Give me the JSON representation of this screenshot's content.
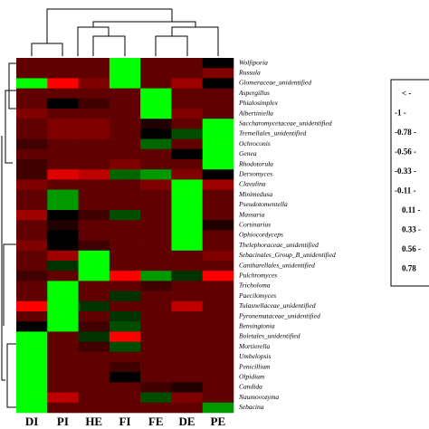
{
  "chart_data": {
    "type": "heatmap",
    "columns": [
      "DI",
      "PI",
      "HE",
      "FI",
      "FE",
      "DE",
      "PE"
    ],
    "rows": [
      "Wolfiporia",
      "Russula",
      "Glomeraceae_unidentified",
      "Aspergillus",
      "Phialosimplex",
      "Albertiniella",
      "Saccharomycetaceae_unidentified",
      "Tremellales_unidentified",
      "Ochroconis",
      "Genea",
      "Rhodotorula",
      "Derxomyces",
      "Clavulina",
      "Minimedusa",
      "Pseudotomentella",
      "Massaria",
      "Cortinarius",
      "Ophiocordyceps",
      "Thelephoraceae_unidentified",
      "Sebacinales_Group_B_unidentified",
      "Cantharellales_unidentified",
      "Pulchromyces",
      "Tricholoma",
      "Paecilomyces",
      "Tulasnellaceae_unidentified",
      "Pyronemataceae_unidentified",
      "Bensingtonia",
      "Boletales_unidentified",
      "Mortierella",
      "Umbelopsis",
      "Penicillium",
      "Olpidium",
      "Candida",
      "Naumovozyma",
      "Sebacina"
    ],
    "values": [
      [
        0.3,
        0.3,
        0.3,
        -1,
        0.3,
        0.3,
        0
      ],
      [
        0.3,
        0.3,
        0.3,
        -1,
        0.3,
        0.3,
        0.4
      ],
      [
        -1,
        0.8,
        0.4,
        -1,
        0.3,
        0.5,
        0
      ],
      [
        0.3,
        0.3,
        0.3,
        0.3,
        -1,
        0.3,
        0.3
      ],
      [
        0.3,
        0,
        0.2,
        0.3,
        -1,
        0.3,
        0.3
      ],
      [
        0.4,
        0.3,
        0.3,
        0.3,
        -1,
        0.4,
        0.3
      ],
      [
        0.3,
        0.4,
        0.4,
        0.3,
        0.1,
        0.3,
        -1
      ],
      [
        0.3,
        0.4,
        0.4,
        0.3,
        0,
        -0.3,
        -1
      ],
      [
        0.2,
        0.3,
        0.3,
        0.3,
        -0.4,
        0.3,
        -1
      ],
      [
        0.3,
        0.3,
        0.3,
        0.3,
        0.3,
        0,
        -1
      ],
      [
        0.2,
        0.3,
        0.3,
        0.4,
        0.3,
        0.3,
        -1
      ],
      [
        0.2,
        0.7,
        0.6,
        -0.4,
        -0.6,
        0.4,
        0
      ],
      [
        0.4,
        0.3,
        0.3,
        0.3,
        0.4,
        -1,
        0.5
      ],
      [
        0.3,
        -0.6,
        0.3,
        0.3,
        0.3,
        -1,
        0.3
      ],
      [
        0.3,
        -0.6,
        0.3,
        0.3,
        0.3,
        -1,
        0.3
      ],
      [
        0.5,
        0,
        0.2,
        -0.3,
        0.3,
        -1,
        0.3
      ],
      [
        0.3,
        0.1,
        0.3,
        0.3,
        0.3,
        -1,
        0.1
      ],
      [
        0.3,
        0,
        0.3,
        0.3,
        0.3,
        -1,
        0.3
      ],
      [
        0.4,
        0,
        0.2,
        0.3,
        0.3,
        -1,
        0.3
      ],
      [
        0.3,
        0.5,
        -1,
        0.3,
        0.3,
        0.3,
        0.4
      ],
      [
        0.3,
        -0.2,
        -1,
        0.3,
        0.3,
        0.3,
        0.3
      ],
      [
        0.2,
        0.3,
        -1,
        0.8,
        -0.6,
        -0.2,
        0.8
      ],
      [
        0.3,
        -1,
        0.3,
        0.3,
        0.2,
        0.3,
        0.3
      ],
      [
        0.3,
        -1,
        0.3,
        -0.2,
        0.3,
        0.3,
        0.3
      ],
      [
        0.8,
        -1,
        -0.2,
        0.3,
        0.3,
        0.6,
        0.3
      ],
      [
        0.3,
        -1,
        0.3,
        -0.2,
        0.3,
        0.3,
        0.3
      ],
      [
        0,
        -1,
        0.2,
        -0.3,
        0.3,
        0.3,
        0.3
      ],
      [
        -1,
        0.3,
        -0.2,
        0.8,
        0.3,
        0.3,
        0.3
      ],
      [
        -1,
        0.3,
        0.2,
        -0.3,
        0.3,
        0.3,
        0.3
      ],
      [
        -1,
        0.3,
        0.3,
        0.3,
        0.3,
        0.3,
        0.3
      ],
      [
        -1,
        0.3,
        0.3,
        0.2,
        0.3,
        0.3,
        0.3
      ],
      [
        -1,
        0.3,
        0.3,
        0,
        0.3,
        0.3,
        0.3
      ],
      [
        -1,
        0.3,
        0.3,
        0.3,
        0.2,
        0.1,
        0.3
      ],
      [
        -1,
        0.6,
        0.3,
        0.3,
        -0.3,
        0.4,
        0.3
      ],
      [
        -1,
        0.3,
        0.3,
        0.3,
        0.3,
        0.3,
        -0.6
      ]
    ],
    "color_range": [
      -1,
      1
    ],
    "colors": {
      "low": "#00ff00",
      "mid": "#000000",
      "high": "#ff0000"
    },
    "legend_labels": [
      "< -",
      "-1 -",
      "-0.78 -",
      "-0.56 -",
      "-0.33 -",
      "-0.11 -",
      "0.11 -",
      "0.33 -",
      "0.56 -",
      "0.78"
    ]
  }
}
